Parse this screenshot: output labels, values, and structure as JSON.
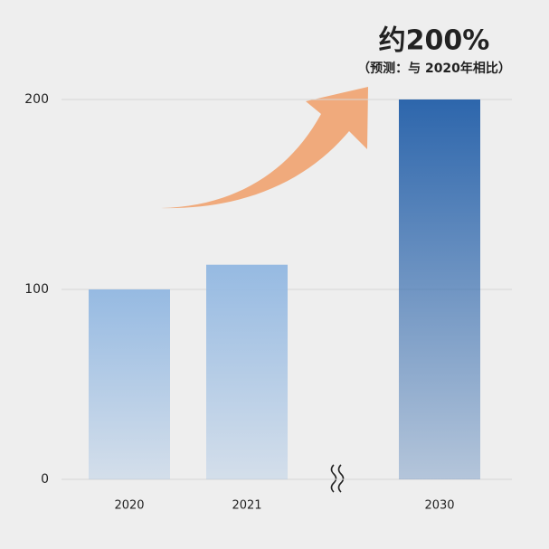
{
  "chart_data": {
    "type": "bar",
    "annotation": "约200%",
    "annotation_note": "（预测：与 2020年相比）",
    "categories": [
      "2020",
      "2021",
      null,
      "2030"
    ],
    "values": [
      100,
      113,
      null,
      200
    ],
    "colors": [
      "#96bae2",
      "#96bae2",
      null,
      "#2d66ac"
    ],
    "ylim": [
      0,
      200
    ],
    "yticks": [
      0,
      100,
      200
    ],
    "grid": true
  }
}
